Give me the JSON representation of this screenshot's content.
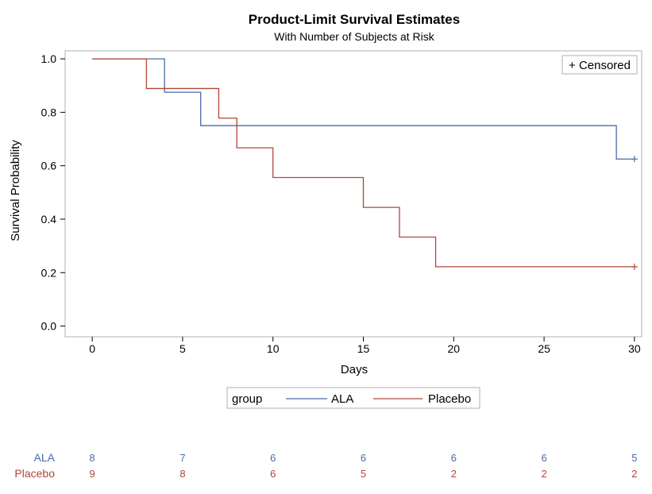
{
  "chart_data": {
    "type": "line",
    "subtype": "step",
    "title": "Product-Limit Survival Estimates",
    "subtitle": "With Number of Subjects at Risk",
    "xlabel": "Days",
    "ylabel": "Survival Probability",
    "xlim": [
      -1.5,
      30.4
    ],
    "ylim": [
      -0.04,
      1.03
    ],
    "xticks": [
      0,
      5,
      10,
      15,
      20,
      25,
      30
    ],
    "yticks": [
      "0.0",
      "0.2",
      "0.4",
      "0.6",
      "0.8",
      "1.0"
    ],
    "grid": false,
    "censored_legend": "+ Censored",
    "legend": {
      "title": "group",
      "placement": "bottom",
      "entries": [
        "ALA",
        "Placebo"
      ]
    },
    "series": [
      {
        "name": "ALA",
        "color": "#4a6ba6",
        "steps": [
          [
            0,
            1.0
          ],
          [
            4,
            0.875
          ],
          [
            6,
            0.75
          ],
          [
            29,
            0.625
          ],
          [
            30,
            0.625
          ]
        ],
        "censored": [
          [
            30,
            0.625
          ]
        ]
      },
      {
        "name": "Placebo",
        "color": "#b0463a",
        "steps": [
          [
            0,
            1.0
          ],
          [
            3,
            0.889
          ],
          [
            7,
            0.778
          ],
          [
            8,
            0.667
          ],
          [
            10,
            0.556
          ],
          [
            15,
            0.444
          ],
          [
            17,
            0.333
          ],
          [
            19,
            0.222
          ],
          [
            30,
            0.222
          ]
        ],
        "censored": [
          [
            30,
            0.222
          ]
        ]
      }
    ],
    "at_risk": {
      "times": [
        0,
        5,
        10,
        15,
        20,
        25,
        30
      ],
      "rows": [
        {
          "group": "ALA",
          "color": "#4a6ba6",
          "values": [
            "8",
            "7",
            "6",
            "6",
            "6",
            "6",
            "5"
          ]
        },
        {
          "group": "Placebo",
          "color": "#b0463a",
          "values": [
            "9",
            "8",
            "6",
            "5",
            "2",
            "2",
            "2"
          ]
        }
      ]
    }
  }
}
